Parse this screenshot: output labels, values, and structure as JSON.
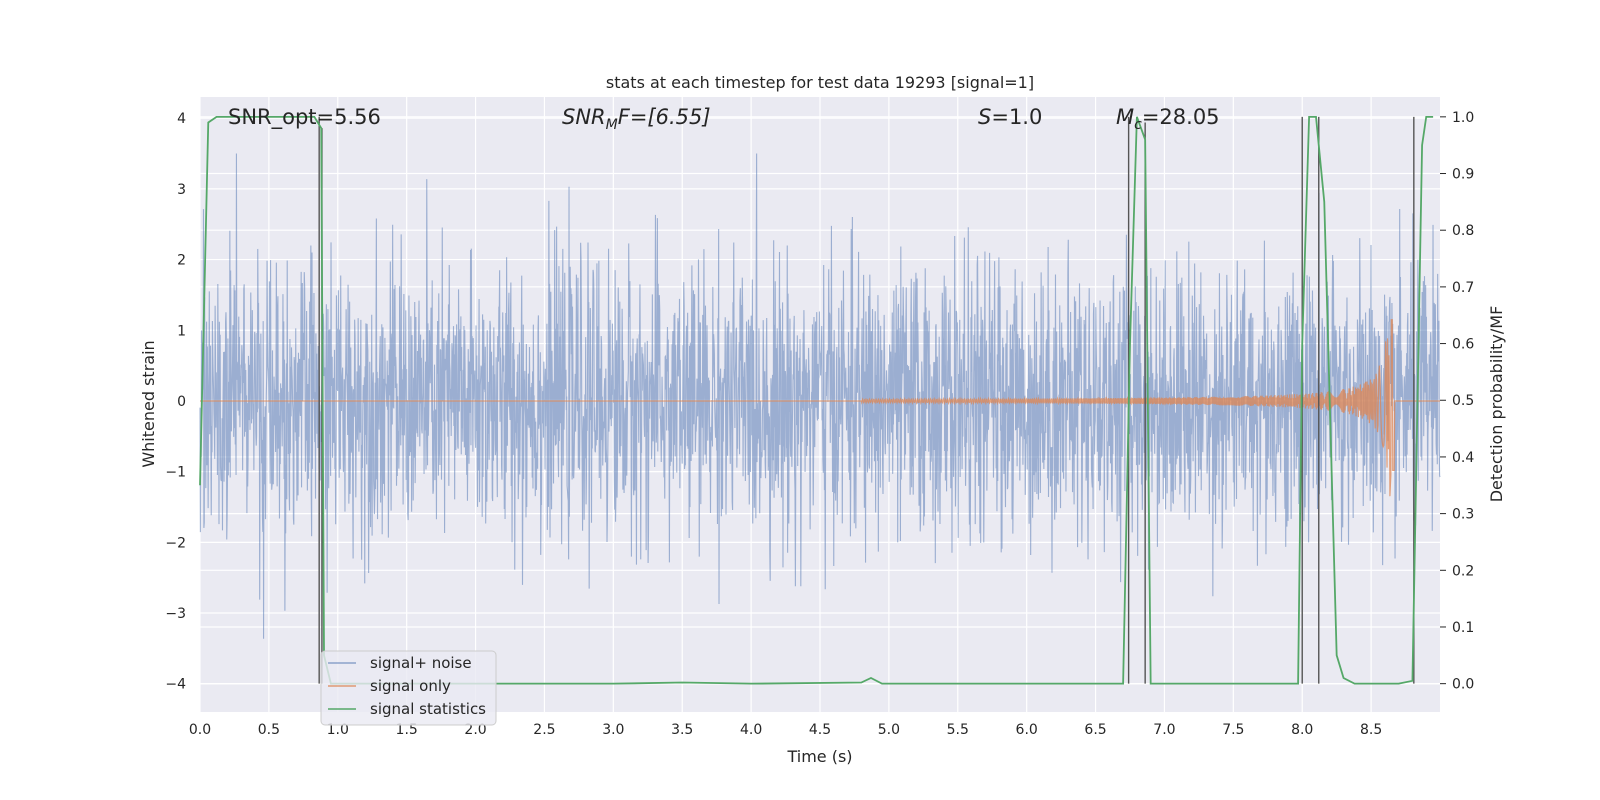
{
  "chart_data": {
    "type": "line",
    "title": "stats at each timestep for test data 19293 [signal=1]",
    "xlabel": "Time (s)",
    "ylabel": "Whitened strain",
    "ylabel_right": "Detection probability/MF",
    "xlim": [
      0.0,
      9.0
    ],
    "ylim": [
      -4.4,
      4.3
    ],
    "ylim_right": [
      -0.05,
      1.035
    ],
    "x_ticks": [
      0.0,
      0.5,
      1.0,
      1.5,
      2.0,
      2.5,
      3.0,
      3.5,
      4.0,
      4.5,
      5.0,
      5.5,
      6.0,
      6.5,
      7.0,
      7.5,
      8.0,
      8.5
    ],
    "x_tick_labels": [
      "0.0",
      "0.5",
      "1.0",
      "1.5",
      "2.0",
      "2.5",
      "3.0",
      "3.5",
      "4.0",
      "4.5",
      "5.0",
      "5.5",
      "6.0",
      "6.5",
      "7.0",
      "7.5",
      "8.0",
      "8.5"
    ],
    "y_ticks": [
      -4,
      -3,
      -2,
      -1,
      0,
      1,
      2,
      3,
      4
    ],
    "y_tick_labels": [
      "−4",
      "−3",
      "−2",
      "−1",
      "0",
      "1",
      "2",
      "3",
      "4"
    ],
    "y_ticks_right": [
      0.0,
      0.1,
      0.2,
      0.3,
      0.4,
      0.5,
      0.6,
      0.7,
      0.8,
      0.9,
      1.0
    ],
    "y_tick_labels_right": [
      "0.0",
      "0.1",
      "0.2",
      "0.3",
      "0.4",
      "0.5",
      "0.6",
      "0.7",
      "0.8",
      "0.9",
      "1.0"
    ],
    "grid": true,
    "legend_position": "lower-left",
    "annotations": {
      "snr_opt": "SNR_opt=5.56",
      "snr_mf_prefix": "SNR",
      "snr_mf_sub": "M",
      "snr_mf_suffix": "F=[6.55]",
      "s_prefix": "S",
      "s_suffix": "=1.0",
      "mc_prefix": "M",
      "mc_sub": "c",
      "mc_suffix": "=28.05"
    },
    "series": [
      {
        "name": "signal+ noise",
        "color": "#4c72b0",
        "description_axis": "left",
        "noise_std": 0.95,
        "x_range": [
          0.0,
          9.0
        ]
      },
      {
        "name": "signal only",
        "color": "#dd8452",
        "description_axis": "left",
        "chirp_start": 4.8,
        "chirp_peak_time": 8.65,
        "chirp_peak_amplitude": 1.15,
        "chirp_min_amplitude": -1.35
      },
      {
        "name": "signal statistics",
        "color": "#55a868",
        "description_axis": "right",
        "x": [
          0.0,
          0.06,
          0.12,
          0.25,
          0.5,
          0.75,
          0.83,
          0.88,
          0.9,
          0.95,
          1.0,
          2.0,
          3.0,
          3.5,
          4.0,
          4.8,
          4.87,
          4.95,
          5.0,
          6.0,
          6.7,
          6.75,
          6.8,
          6.86,
          6.9,
          6.95,
          7.5,
          7.97,
          8.0,
          8.05,
          8.1,
          8.16,
          8.25,
          8.3,
          8.38,
          8.5,
          8.7,
          8.8,
          8.87,
          8.9,
          8.95
        ],
        "y": [
          0.35,
          0.99,
          1.0,
          1.0,
          1.0,
          1.0,
          1.0,
          0.98,
          0.05,
          0.0,
          0.0,
          0.0,
          0.0,
          0.002,
          0.0,
          0.002,
          0.01,
          0.0,
          0.0,
          0.0,
          0.0,
          0.6,
          1.0,
          0.96,
          0.0,
          0.0,
          0.0,
          0.0,
          0.6,
          1.0,
          1.0,
          0.85,
          0.05,
          0.01,
          0.0,
          0.0,
          0.0,
          0.005,
          0.95,
          1.0,
          1.0
        ]
      }
    ],
    "vertical_markers": {
      "color": "#555555",
      "x": [
        0.865,
        0.885,
        6.74,
        6.86,
        8.0,
        8.12,
        8.81
      ],
      "y_right": [
        1.0,
        0.98,
        1.0,
        0.99,
        1.0,
        1.0,
        1.0
      ]
    }
  }
}
